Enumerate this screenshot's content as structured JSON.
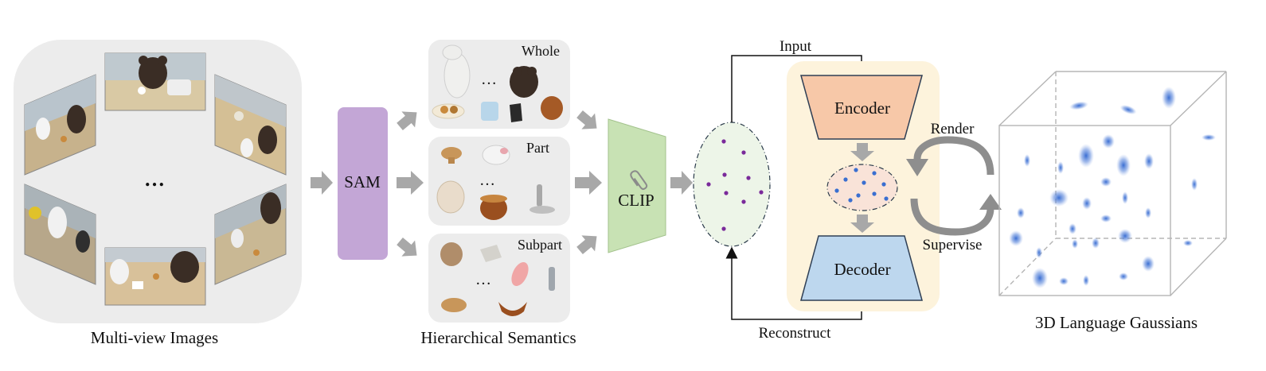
{
  "multiview": {
    "ellipsis": "…",
    "caption": "Multi-view Images"
  },
  "sam": {
    "label": "SAM"
  },
  "hierarchy": {
    "whole": {
      "label": "Whole",
      "ellipsis": "…"
    },
    "part": {
      "label": "Part",
      "ellipsis": "…"
    },
    "subpart": {
      "label": "Subpart",
      "ellipsis": "…"
    },
    "caption": "Hierarchical Semantics"
  },
  "clip": {
    "label": "CLIP",
    "icon": "paperclip-icon"
  },
  "autoencoder": {
    "input_label": "Input",
    "reconstruct_label": "Reconstruct",
    "encoder_label": "Encoder",
    "decoder_label": "Decoder"
  },
  "loop": {
    "render_label": "Render",
    "supervise_label": "Supervise"
  },
  "gaussians": {
    "caption": "3D Language Gaussians"
  },
  "colors": {
    "panel_gray": "#ececec",
    "sam_purple": "#c3a6d6",
    "clip_green": "#c8e2b4",
    "latent_green": "#edf5e8",
    "ae_bg": "#fdf3dc",
    "encoder": "#f7c8a8",
    "decoder": "#bdd7ee",
    "arrow_gray": "#a8a8a8",
    "dot_purple": "#7a2a9a",
    "dot_blue": "#3a6fd0"
  }
}
